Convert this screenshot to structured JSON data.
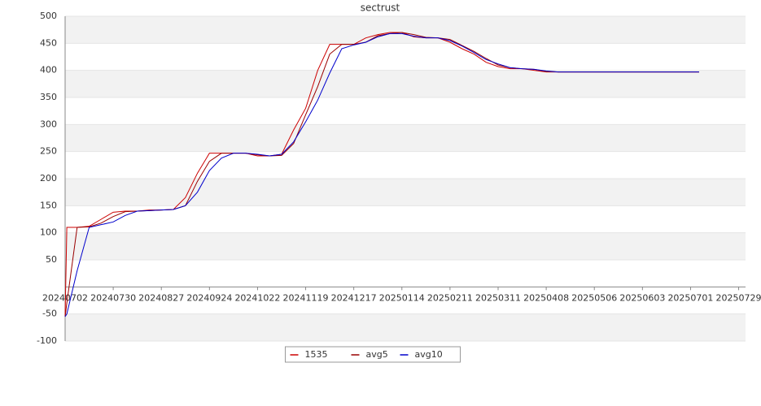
{
  "chart_data": {
    "type": "line",
    "title": "sectrust",
    "x": [
      "20240702",
      "20240703",
      "20240709",
      "20240716",
      "20240723",
      "20240730",
      "20240806",
      "20240813",
      "20240820",
      "20240827",
      "20240903",
      "20240910",
      "20240917",
      "20240924",
      "20241001",
      "20241008",
      "20241015",
      "20241022",
      "20241029",
      "20241105",
      "20241112",
      "20241119",
      "20241126",
      "20241203",
      "20241210",
      "20241217",
      "20241224",
      "20241231",
      "20250107",
      "20250114",
      "20250121",
      "20250128",
      "20250204",
      "20250211",
      "20250218",
      "20250225",
      "20250304",
      "20250311",
      "20250318",
      "20250325",
      "20250401",
      "20250408",
      "20250415",
      "20250422",
      "20250429",
      "20250506",
      "20250513",
      "20250520",
      "20250527",
      "20250603",
      "20250610",
      "20250617",
      "20250624",
      "20250701",
      "20250706"
    ],
    "series": [
      {
        "name": "1535",
        "color": "#cc0000",
        "values": [
          -55,
          110,
          110,
          112,
          125,
          138,
          140,
          140,
          142,
          142,
          143,
          165,
          210,
          247,
          247,
          247,
          247,
          242,
          242,
          245,
          290,
          330,
          400,
          448,
          448,
          448,
          460,
          466,
          470,
          470,
          462,
          460,
          460,
          452,
          440,
          430,
          415,
          407,
          403,
          403,
          400,
          397,
          397,
          397,
          397,
          397,
          397,
          397,
          397,
          397,
          397,
          397,
          397,
          397,
          397
        ]
      },
      {
        "name": "avg5",
        "color": "#990000",
        "values": [
          -55,
          -30,
          110,
          111,
          118,
          130,
          139,
          140,
          141,
          142,
          143,
          150,
          195,
          232,
          247,
          247,
          247,
          244,
          242,
          243,
          265,
          318,
          370,
          430,
          448,
          448,
          452,
          464,
          468,
          470,
          466,
          461,
          460,
          457,
          446,
          435,
          422,
          410,
          405,
          403,
          402,
          398,
          397,
          397,
          397,
          397,
          397,
          397,
          397,
          397,
          397,
          397,
          397,
          397,
          397
        ]
      },
      {
        "name": "avg10",
        "color": "#0000cc",
        "values": [
          -55,
          -50,
          30,
          110,
          115,
          120,
          132,
          140,
          141,
          142,
          143,
          150,
          175,
          215,
          238,
          247,
          247,
          245,
          242,
          245,
          268,
          305,
          345,
          395,
          440,
          447,
          452,
          462,
          468,
          468,
          463,
          460,
          460,
          455,
          445,
          433,
          420,
          412,
          405,
          403,
          402,
          399,
          397,
          397,
          397,
          397,
          397,
          397,
          397,
          397,
          397,
          397,
          397,
          397,
          397
        ]
      }
    ],
    "xlim": [
      "20240702",
      "20250802"
    ],
    "xticks": [
      "20240702",
      "20240730",
      "20240827",
      "20240924",
      "20241022",
      "20241119",
      "20241217",
      "20250114",
      "20250211",
      "20250311",
      "20250408",
      "20250506",
      "20250603",
      "20250701",
      "20250729"
    ],
    "ylim": [
      -100,
      500
    ],
    "yticks": [
      -100,
      -50,
      50,
      100,
      150,
      200,
      250,
      300,
      350,
      400,
      450,
      500
    ],
    "alternating_bands": true,
    "legend": "bottom"
  }
}
